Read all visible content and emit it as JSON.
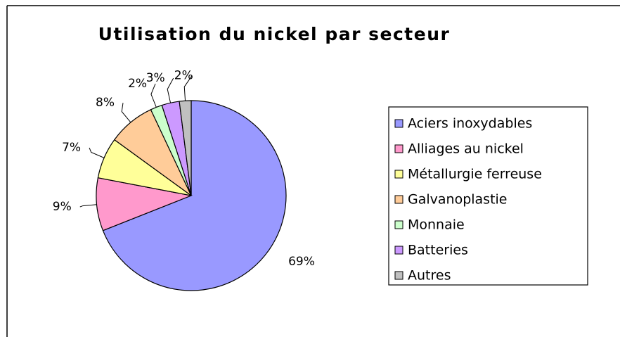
{
  "chart_data": {
    "type": "pie",
    "title": "Utilisation du nickel par secteur",
    "categories": [
      "Aciers inoxydables",
      "Alliages au nickel",
      "Métallurgie ferreuse",
      "Galvanoplastie",
      "Monnaie",
      "Batteries",
      "Autres"
    ],
    "values": [
      69,
      9,
      7,
      8,
      2,
      3,
      2
    ],
    "value_labels": [
      "69%",
      "9%",
      "7%",
      "8%",
      "2%",
      "3%",
      "2%"
    ],
    "colors": [
      "#9999ff",
      "#ff99cc",
      "#ffff99",
      "#ffcc99",
      "#ccffcc",
      "#cc99ff",
      "#c0c0c0"
    ],
    "legend": "right"
  }
}
